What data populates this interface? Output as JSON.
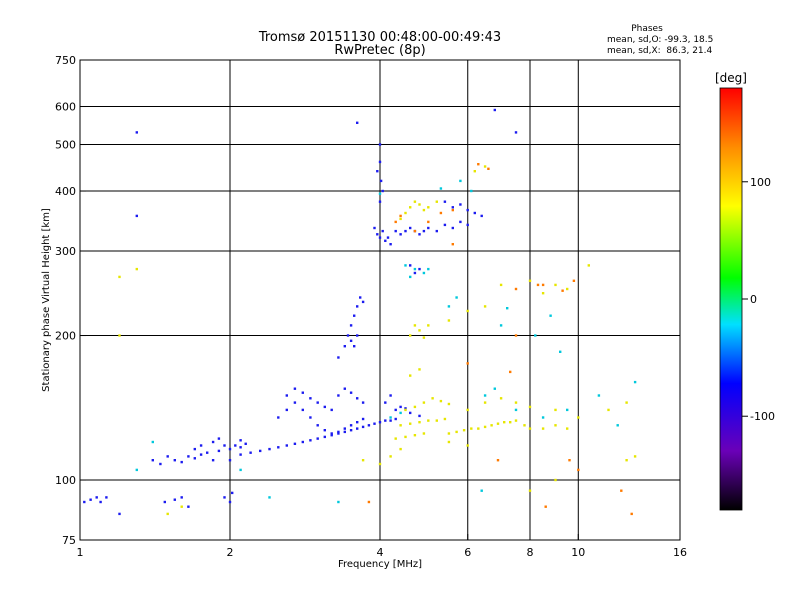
{
  "chart_data": {
    "type": "scatter",
    "title": "Tromsø 20151130 00:48:00-00:49:43",
    "subtitle": "RwPretec (8p)",
    "stats": {
      "heading": "Phases",
      "line_o": "mean, sd,O: -99.3, 18.5",
      "line_x": "mean, sd,X:  86.3, 21.4"
    },
    "xlabel": "Frequency [MHz]",
    "ylabel": "Stationary phase Virtual Height [km]",
    "x_scale": "log",
    "y_scale": "log",
    "xlim": [
      1,
      16
    ],
    "ylim": [
      75,
      750
    ],
    "x_ticks": [
      1,
      2,
      4,
      6,
      8,
      10,
      16
    ],
    "x_tick_labels": [
      "1",
      "2",
      "4",
      "6",
      "8",
      "10",
      "16"
    ],
    "y_ticks": [
      75,
      100,
      200,
      300,
      400,
      500,
      600,
      750
    ],
    "y_tick_labels": [
      "75",
      "100",
      "200",
      "300",
      "400",
      "500",
      "600",
      "750"
    ],
    "grid_x": [
      2,
      4,
      6,
      8,
      10
    ],
    "grid_y": [
      100,
      200,
      300,
      400,
      500,
      600
    ],
    "grid": true,
    "colorbar": {
      "label": "[deg]",
      "range": [
        -180,
        180
      ],
      "ticks": [
        100,
        0,
        -100
      ],
      "tick_labels": [
        "100",
        "0",
        "-100"
      ]
    },
    "series": [
      {
        "points": [
          [
            1.02,
            90
          ],
          [
            1.05,
            91
          ],
          [
            1.08,
            92
          ],
          [
            1.1,
            90
          ],
          [
            1.13,
            92
          ],
          [
            1.2,
            85
          ],
          [
            1.48,
            90
          ],
          [
            1.55,
            91
          ],
          [
            1.6,
            92
          ],
          [
            1.65,
            88
          ],
          [
            1.95,
            92
          ],
          [
            2.0,
            90
          ],
          [
            2.02,
            94
          ],
          [
            1.4,
            110
          ],
          [
            1.45,
            108
          ],
          [
            1.5,
            112
          ],
          [
            1.55,
            110
          ],
          [
            1.6,
            109
          ],
          [
            1.65,
            112
          ],
          [
            1.7,
            111
          ],
          [
            1.75,
            113
          ],
          [
            1.8,
            114
          ],
          [
            1.85,
            110
          ],
          [
            1.9,
            115
          ],
          [
            1.95,
            118
          ],
          [
            2.0,
            116
          ],
          [
            2.05,
            118
          ],
          [
            2.1,
            117
          ],
          [
            2.15,
            119
          ],
          [
            1.7,
            116
          ],
          [
            1.75,
            118
          ],
          [
            1.85,
            120
          ],
          [
            1.9,
            122
          ],
          [
            2.1,
            121
          ],
          [
            2.0,
            110
          ],
          [
            2.1,
            113
          ],
          [
            2.2,
            114
          ],
          [
            2.3,
            115
          ],
          [
            2.4,
            116
          ],
          [
            2.5,
            117
          ],
          [
            2.6,
            118
          ],
          [
            2.7,
            119
          ],
          [
            2.8,
            120
          ],
          [
            2.9,
            121
          ],
          [
            3.0,
            122
          ],
          [
            3.1,
            123
          ],
          [
            3.2,
            124
          ],
          [
            3.3,
            125
          ],
          [
            3.4,
            126
          ],
          [
            3.5,
            127
          ],
          [
            3.6,
            128
          ],
          [
            3.7,
            129
          ],
          [
            3.8,
            130
          ],
          [
            3.9,
            131
          ],
          [
            4.0,
            132
          ],
          [
            4.1,
            133
          ],
          [
            4.2,
            133
          ],
          [
            4.3,
            134
          ],
          [
            2.5,
            135
          ],
          [
            2.6,
            140
          ],
          [
            2.7,
            145
          ],
          [
            2.8,
            140
          ],
          [
            2.9,
            135
          ],
          [
            3.0,
            130
          ],
          [
            3.1,
            127
          ],
          [
            3.2,
            125
          ],
          [
            3.3,
            126
          ],
          [
            3.4,
            128
          ],
          [
            3.5,
            130
          ],
          [
            3.6,
            132
          ],
          [
            3.7,
            134
          ],
          [
            2.6,
            150
          ],
          [
            2.7,
            155
          ],
          [
            2.8,
            152
          ],
          [
            2.9,
            148
          ],
          [
            3.0,
            145
          ],
          [
            3.1,
            142
          ],
          [
            3.2,
            140
          ],
          [
            3.3,
            150
          ],
          [
            3.4,
            155
          ],
          [
            3.5,
            152
          ],
          [
            3.6,
            148
          ],
          [
            3.7,
            145
          ],
          [
            3.3,
            180
          ],
          [
            3.4,
            190
          ],
          [
            3.45,
            200
          ],
          [
            3.5,
            210
          ],
          [
            3.55,
            220
          ],
          [
            3.6,
            230
          ],
          [
            3.65,
            240
          ],
          [
            3.7,
            235
          ],
          [
            3.5,
            195
          ],
          [
            3.6,
            200
          ],
          [
            3.55,
            190
          ],
          [
            4.0,
            320
          ],
          [
            4.05,
            330
          ],
          [
            4.1,
            315
          ],
          [
            4.15,
            320
          ],
          [
            4.2,
            310
          ],
          [
            3.9,
            335
          ],
          [
            3.95,
            325
          ],
          [
            4.0,
            380
          ],
          [
            4.02,
            420
          ],
          [
            4.0,
            460
          ],
          [
            3.95,
            440
          ],
          [
            4.05,
            400
          ],
          [
            4.3,
            330
          ],
          [
            4.4,
            325
          ],
          [
            4.5,
            330
          ],
          [
            4.6,
            335
          ],
          [
            4.7,
            330
          ],
          [
            4.8,
            325
          ],
          [
            4.9,
            330
          ],
          [
            5.0,
            335
          ],
          [
            5.2,
            330
          ],
          [
            5.4,
            340
          ],
          [
            5.6,
            335
          ],
          [
            5.8,
            345
          ],
          [
            6.0,
            340
          ],
          [
            6.2,
            360
          ],
          [
            6.4,
            355
          ],
          [
            5.4,
            380
          ],
          [
            5.6,
            370
          ],
          [
            5.8,
            375
          ],
          [
            6.0,
            365
          ],
          [
            4.6,
            280
          ],
          [
            4.7,
            270
          ],
          [
            4.8,
            275
          ],
          [
            4.3,
            140
          ],
          [
            4.4,
            142
          ],
          [
            4.5,
            141
          ],
          [
            4.2,
            150
          ],
          [
            4.1,
            145
          ],
          [
            4.6,
            138
          ],
          [
            4.8,
            136
          ],
          [
            1.3,
            530
          ],
          [
            3.6,
            555
          ],
          [
            6.8,
            590
          ],
          [
            7.5,
            530
          ],
          [
            1.3,
            355
          ],
          [
            4.0,
            500
          ]
        ]
      },
      {
        "points": [
          [
            4.4,
            130
          ],
          [
            4.6,
            131
          ],
          [
            4.8,
            132
          ],
          [
            5.0,
            133
          ],
          [
            5.2,
            133
          ],
          [
            5.4,
            134
          ],
          [
            4.5,
            140
          ],
          [
            4.7,
            142
          ],
          [
            4.9,
            145
          ],
          [
            5.1,
            148
          ],
          [
            5.3,
            146
          ],
          [
            5.5,
            144
          ],
          [
            4.3,
            122
          ],
          [
            4.5,
            123
          ],
          [
            4.7,
            124
          ],
          [
            4.9,
            125
          ],
          [
            4.6,
            200
          ],
          [
            4.8,
            205
          ],
          [
            5.0,
            210
          ],
          [
            4.7,
            210
          ],
          [
            4.9,
            198
          ],
          [
            4.6,
            165
          ],
          [
            4.8,
            170
          ],
          [
            4.5,
            360
          ],
          [
            4.6,
            370
          ],
          [
            4.7,
            380
          ],
          [
            4.8,
            375
          ],
          [
            4.9,
            365
          ],
          [
            5.0,
            370
          ],
          [
            5.2,
            380
          ],
          [
            4.4,
            350
          ],
          [
            5.5,
            125
          ],
          [
            5.7,
            126
          ],
          [
            5.9,
            127
          ],
          [
            6.1,
            128
          ],
          [
            6.3,
            128
          ],
          [
            6.5,
            129
          ],
          [
            6.7,
            130
          ],
          [
            6.9,
            131
          ],
          [
            7.1,
            132
          ],
          [
            7.3,
            132
          ],
          [
            7.5,
            133
          ],
          [
            7.8,
            130
          ],
          [
            8.0,
            128
          ],
          [
            8.5,
            128
          ],
          [
            9.0,
            130
          ],
          [
            9.5,
            128
          ],
          [
            6.0,
            140
          ],
          [
            6.5,
            145
          ],
          [
            7.0,
            148
          ],
          [
            7.5,
            145
          ],
          [
            8.0,
            142
          ],
          [
            9.0,
            140
          ],
          [
            10.0,
            135
          ],
          [
            5.5,
            215
          ],
          [
            6.0,
            225
          ],
          [
            6.5,
            230
          ],
          [
            7.0,
            255
          ],
          [
            8.0,
            260
          ],
          [
            9.0,
            255
          ],
          [
            9.5,
            250
          ],
          [
            8.5,
            245
          ],
          [
            3.7,
            110
          ],
          [
            4.0,
            108
          ],
          [
            4.2,
            112
          ],
          [
            4.4,
            116
          ],
          [
            5.5,
            120
          ],
          [
            6.0,
            118
          ],
          [
            6.2,
            440
          ],
          [
            6.5,
            450
          ],
          [
            1.2,
            265
          ],
          [
            1.3,
            275
          ],
          [
            1.2,
            200
          ],
          [
            1.5,
            85
          ],
          [
            1.6,
            88
          ],
          [
            11.5,
            140
          ],
          [
            12.5,
            145
          ],
          [
            12.5,
            110
          ],
          [
            13.0,
            112
          ],
          [
            8.0,
            95
          ],
          [
            9.0,
            100
          ],
          [
            10.5,
            280
          ]
        ]
      },
      {
        "points": [
          [
            4.5,
            280
          ],
          [
            4.7,
            275
          ],
          [
            4.9,
            270
          ],
          [
            5.5,
            230
          ],
          [
            5.7,
            240
          ],
          [
            6.5,
            150
          ],
          [
            6.8,
            155
          ],
          [
            7.5,
            140
          ],
          [
            8.5,
            135
          ],
          [
            9.5,
            140
          ],
          [
            4.2,
            135
          ],
          [
            4.4,
            138
          ],
          [
            4.6,
            265
          ],
          [
            5.0,
            275
          ],
          [
            7.2,
            228
          ],
          [
            8.2,
            200
          ],
          [
            3.3,
            90
          ],
          [
            2.1,
            105
          ],
          [
            2.4,
            92
          ],
          [
            1.4,
            120
          ],
          [
            1.3,
            105
          ],
          [
            11.0,
            150
          ],
          [
            12.0,
            130
          ],
          [
            13.0,
            160
          ],
          [
            5.8,
            420
          ],
          [
            6.1,
            400
          ],
          [
            4.0,
            395
          ],
          [
            5.3,
            405
          ],
          [
            7.0,
            210
          ],
          [
            8.8,
            220
          ],
          [
            9.2,
            185
          ],
          [
            6.4,
            95
          ]
        ]
      },
      {
        "points": [
          [
            4.7,
            330
          ],
          [
            5.0,
            345
          ],
          [
            5.3,
            360
          ],
          [
            5.6,
            365
          ],
          [
            4.3,
            345
          ],
          [
            4.4,
            355
          ],
          [
            6.3,
            455
          ],
          [
            6.6,
            445
          ],
          [
            7.5,
            250
          ],
          [
            8.3,
            255
          ],
          [
            9.3,
            248
          ],
          [
            9.8,
            260
          ],
          [
            6.0,
            175
          ],
          [
            7.5,
            200
          ],
          [
            8.5,
            255
          ],
          [
            5.6,
            310
          ],
          [
            8.6,
            88
          ],
          [
            10.0,
            105
          ],
          [
            3.8,
            90
          ],
          [
            12.2,
            95
          ],
          [
            12.8,
            85
          ],
          [
            9.6,
            110
          ],
          [
            7.3,
            168
          ],
          [
            6.9,
            110
          ]
        ]
      }
    ]
  }
}
